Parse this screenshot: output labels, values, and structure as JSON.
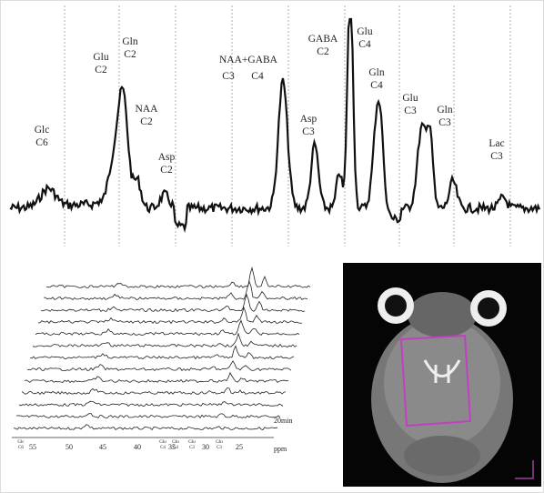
{
  "spectrum_labels": [
    [
      "Glc",
      "C6"
    ],
    [
      "Glu",
      "C2"
    ],
    [
      "Gln",
      "C2"
    ],
    [
      "NAA",
      "C2"
    ],
    [
      "Asp",
      "C2"
    ],
    [
      "NAA+GABA"
    ],
    [
      "C3"
    ],
    [
      "C4"
    ],
    [
      "Asp",
      "C3"
    ],
    [
      "GABA",
      "C2"
    ],
    [
      "Glu",
      "C4"
    ],
    [
      "Gln",
      "C4"
    ],
    [
      "Glu",
      "C3"
    ],
    [
      "Gln",
      "C3"
    ],
    [
      "Lac",
      "C3"
    ]
  ],
  "stack": {
    "ticks": [
      "55",
      "50",
      "45",
      "40",
      "35",
      "30",
      "25"
    ],
    "unit": "ppm",
    "time": "20min",
    "small_labels": [
      [
        "Glc",
        "C6"
      ],
      [
        "Glu",
        "C4"
      ],
      [
        "Gln",
        "C4"
      ],
      [
        "Glu",
        "C3"
      ],
      [
        "Gln",
        "C3"
      ]
    ]
  }
}
